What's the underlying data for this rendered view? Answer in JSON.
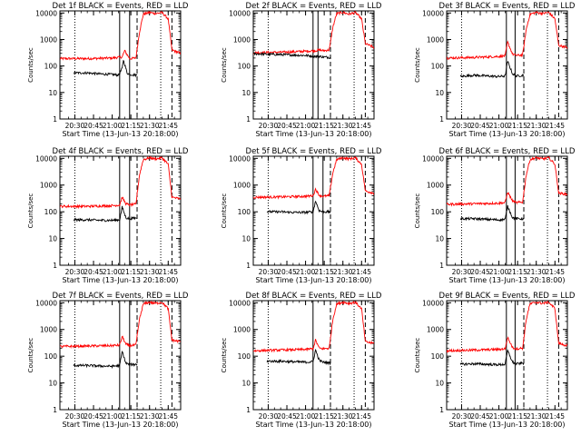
{
  "figure": {
    "background": "#ffffff",
    "colors": {
      "events": "#000000",
      "lld": "#ff0000",
      "axes": "#000000"
    }
  },
  "chart_data": [
    {
      "type": "line",
      "detector": "1f",
      "title": "Det 1f BLACK = Events, RED = LLD",
      "xlabel": "Start Time (13-Jun-13 20:18:00)",
      "ylabel": "Counts/sec",
      "xlim": [
        "20:18",
        "21:55"
      ],
      "ylim": [
        1,
        12000
      ],
      "yscale": "log",
      "xticks": [
        "20:30",
        "20:45",
        "21:00",
        "21:15",
        "21:30",
        "21:45"
      ],
      "yticks": [
        "1",
        "10",
        "100",
        "1000",
        "10000"
      ],
      "vlines": {
        "dotted": [
          "20:30",
          "21:39"
        ],
        "solid": [
          "21:06",
          "21:14"
        ],
        "dashed": [
          "21:20",
          "21:48"
        ]
      },
      "series": [
        {
          "name": "LLD",
          "color": "#ff0000",
          "x": [
            "20:18",
            "20:40",
            "21:00",
            "21:08",
            "21:10",
            "21:14",
            "21:19",
            "21:22",
            "21:25",
            "21:30",
            "21:35",
            "21:40",
            "21:45",
            "21:48",
            "21:55"
          ],
          "y": [
            190,
            190,
            200,
            220,
            380,
            190,
            200,
            2000,
            9000,
            10500,
            9500,
            10500,
            6000,
            400,
            300
          ]
        },
        {
          "name": "Events",
          "color": "#000000",
          "x": [
            "20:29",
            "20:40",
            "20:50",
            "21:00",
            "21:05",
            "21:08",
            "21:09",
            "21:12",
            "21:14",
            "21:20"
          ],
          "y": [
            55,
            55,
            50,
            48,
            45,
            80,
            170,
            55,
            48,
            45
          ]
        }
      ]
    },
    {
      "type": "line",
      "detector": "2f",
      "title": "Det 2f BLACK = Events, RED = LLD",
      "xlabel": "Start Time (13-Jun-13 20:18:00)",
      "ylabel": "Counts/sec",
      "xlim": [
        "20:18",
        "21:55"
      ],
      "ylim": [
        1,
        12000
      ],
      "yscale": "log",
      "xticks": [
        "20:30",
        "20:45",
        "21:00",
        "21:15",
        "21:30",
        "21:45"
      ],
      "yticks": [
        "1",
        "10",
        "100",
        "1000",
        "10000"
      ],
      "vlines": {
        "dotted": [
          "20:30",
          "21:39"
        ],
        "solid": [
          "21:06",
          "21:10"
        ],
        "dashed": [
          "21:20",
          "21:48"
        ]
      },
      "series": [
        {
          "name": "LLD",
          "color": "#ff0000",
          "x": [
            "20:18",
            "20:40",
            "21:00",
            "21:08",
            "21:11",
            "21:14",
            "21:19",
            "21:22",
            "21:25",
            "21:30",
            "21:35",
            "21:40",
            "21:45",
            "21:48",
            "21:55"
          ],
          "y": [
            320,
            330,
            360,
            380,
            400,
            380,
            400,
            3000,
            9500,
            10500,
            9000,
            10500,
            6000,
            700,
            500
          ]
        },
        {
          "name": "Events",
          "color": "#000000",
          "x": [
            "20:18",
            "20:40",
            "21:00",
            "21:08",
            "21:11",
            "21:14",
            "21:20"
          ],
          "y": [
            290,
            270,
            250,
            230,
            230,
            220,
            210
          ]
        }
      ]
    },
    {
      "type": "line",
      "detector": "3f",
      "title": "Det 3f BLACK = Events, RED = LLD",
      "xlabel": "Start Time (13-Jun-13 20:18:00)",
      "ylabel": "Counts/sec",
      "xlim": [
        "20:18",
        "21:55"
      ],
      "ylim": [
        1,
        12000
      ],
      "yscale": "log",
      "xticks": [
        "20:30",
        "20:45",
        "21:00",
        "21:15",
        "21:30",
        "21:45"
      ],
      "yticks": [
        "1",
        "10",
        "100",
        "1000",
        "10000"
      ],
      "vlines": {
        "dotted": [
          "20:30",
          "21:39"
        ],
        "solid": [
          "21:06",
          "21:13"
        ],
        "dashed": [
          "21:20",
          "21:48"
        ]
      },
      "series": [
        {
          "name": "LLD",
          "color": "#ff0000",
          "x": [
            "20:18",
            "20:40",
            "21:00",
            "21:05",
            "21:07",
            "21:11",
            "21:14",
            "21:19",
            "21:22",
            "21:25",
            "21:30",
            "21:35",
            "21:40",
            "21:45",
            "21:48",
            "21:55"
          ],
          "y": [
            200,
            210,
            230,
            240,
            800,
            280,
            250,
            260,
            2500,
            9000,
            10500,
            9500,
            10500,
            6000,
            600,
            500
          ]
        },
        {
          "name": "Events",
          "color": "#000000",
          "x": [
            "20:29",
            "20:40",
            "20:50",
            "21:00",
            "21:05",
            "21:07",
            "21:11",
            "21:14",
            "21:20"
          ],
          "y": [
            40,
            45,
            42,
            40,
            42,
            150,
            50,
            42,
            45
          ]
        }
      ]
    },
    {
      "type": "line",
      "detector": "4f",
      "title": "Det 4f BLACK = Events, RED = LLD",
      "xlabel": "Start Time (13-Jun-13 20:18:00)",
      "ylabel": "Counts/sec",
      "xlim": [
        "20:18",
        "21:55"
      ],
      "ylim": [
        1,
        12000
      ],
      "yscale": "log",
      "xticks": [
        "20:30",
        "20:45",
        "21:00",
        "21:15",
        "21:30",
        "21:45"
      ],
      "yticks": [
        "1",
        "10",
        "100",
        "1000",
        "10000"
      ],
      "vlines": {
        "dotted": [
          "20:30",
          "21:39"
        ],
        "solid": [
          "21:06",
          "21:14"
        ],
        "dashed": [
          "21:20",
          "21:48"
        ]
      },
      "series": [
        {
          "name": "LLD",
          "color": "#ff0000",
          "x": [
            "20:18",
            "20:40",
            "21:00",
            "21:06",
            "21:08",
            "21:11",
            "21:14",
            "21:19",
            "21:22",
            "21:25",
            "21:30",
            "21:35",
            "21:40",
            "21:45",
            "21:48",
            "21:55"
          ],
          "y": [
            160,
            160,
            170,
            180,
            350,
            200,
            180,
            190,
            2500,
            9000,
            10500,
            9500,
            10500,
            6000,
            350,
            300
          ]
        },
        {
          "name": "Events",
          "color": "#000000",
          "x": [
            "20:29",
            "20:40",
            "20:50",
            "21:00",
            "21:06",
            "21:08",
            "21:11",
            "21:14",
            "21:20"
          ],
          "y": [
            50,
            50,
            48,
            48,
            50,
            150,
            60,
            55,
            60
          ]
        }
      ]
    },
    {
      "type": "line",
      "detector": "5f",
      "title": "Det 5f BLACK = Events, RED = LLD",
      "xlabel": "Start Time (13-Jun-13 20:18:00)",
      "ylabel": "Counts/sec",
      "xlim": [
        "20:18",
        "21:55"
      ],
      "ylim": [
        1,
        12000
      ],
      "yscale": "log",
      "xticks": [
        "20:30",
        "20:45",
        "21:00",
        "21:15",
        "21:30",
        "21:45"
      ],
      "yticks": [
        "1",
        "10",
        "100",
        "1000",
        "10000"
      ],
      "vlines": {
        "dotted": [
          "20:30",
          "21:39"
        ],
        "solid": [
          "21:06",
          "21:14"
        ],
        "dashed": [
          "21:20",
          "21:48"
        ]
      },
      "series": [
        {
          "name": "LLD",
          "color": "#ff0000",
          "x": [
            "20:18",
            "20:40",
            "21:00",
            "21:06",
            "21:08",
            "21:11",
            "21:14",
            "21:19",
            "21:22",
            "21:25",
            "21:30",
            "21:35",
            "21:40",
            "21:45",
            "21:48",
            "21:55"
          ],
          "y": [
            350,
            360,
            380,
            400,
            700,
            420,
            380,
            400,
            3000,
            9000,
            10500,
            9500,
            10500,
            6000,
            600,
            500
          ]
        },
        {
          "name": "Events",
          "color": "#000000",
          "x": [
            "20:29",
            "20:40",
            "20:50",
            "21:00",
            "21:06",
            "21:08",
            "21:11",
            "21:14",
            "21:20"
          ],
          "y": [
            100,
            100,
            95,
            95,
            100,
            250,
            110,
            100,
            100
          ]
        }
      ]
    },
    {
      "type": "line",
      "detector": "6f",
      "title": "Det 6f BLACK = Events, RED = LLD",
      "xlabel": "Start Time (13-Jun-13 20:18:00)",
      "ylabel": "Counts/sec",
      "xlim": [
        "20:18",
        "21:55"
      ],
      "ylim": [
        1,
        12000
      ],
      "yscale": "log",
      "xticks": [
        "20:30",
        "20:45",
        "21:00",
        "21:15",
        "21:30",
        "21:45"
      ],
      "yticks": [
        "1",
        "10",
        "100",
        "1000",
        "10000"
      ],
      "vlines": {
        "dotted": [
          "20:30",
          "21:39"
        ],
        "solid": [
          "21:06",
          "21:13"
        ],
        "dashed": [
          "21:20",
          "21:48"
        ]
      },
      "series": [
        {
          "name": "LLD",
          "color": "#ff0000",
          "x": [
            "20:18",
            "20:40",
            "21:00",
            "21:05",
            "21:07",
            "21:11",
            "21:14",
            "21:19",
            "21:22",
            "21:25",
            "21:30",
            "21:35",
            "21:40",
            "21:45",
            "21:48",
            "21:55"
          ],
          "y": [
            190,
            200,
            210,
            220,
            550,
            250,
            220,
            230,
            2500,
            9000,
            10500,
            9500,
            10500,
            6000,
            500,
            450
          ]
        },
        {
          "name": "Events",
          "color": "#000000",
          "x": [
            "20:29",
            "20:40",
            "20:50",
            "21:00",
            "21:05",
            "21:07",
            "21:11",
            "21:14",
            "21:20"
          ],
          "y": [
            55,
            55,
            52,
            50,
            52,
            160,
            60,
            55,
            55
          ]
        }
      ]
    },
    {
      "type": "line",
      "detector": "7f",
      "title": "Det 7f BLACK = Events, RED = LLD",
      "xlabel": "Start Time (13-Jun-13 20:18:00)",
      "ylabel": "Counts/sec",
      "xlim": [
        "20:18",
        "21:55"
      ],
      "ylim": [
        1,
        12000
      ],
      "yscale": "log",
      "xticks": [
        "20:30",
        "20:45",
        "21:00",
        "21:15",
        "21:30",
        "21:45"
      ],
      "yticks": [
        "1",
        "10",
        "100",
        "1000",
        "10000"
      ],
      "vlines": {
        "dotted": [
          "20:30",
          "21:39"
        ],
        "solid": [
          "21:06",
          "21:14"
        ],
        "dashed": [
          "21:20",
          "21:48"
        ]
      },
      "series": [
        {
          "name": "LLD",
          "color": "#ff0000",
          "x": [
            "20:18",
            "20:40",
            "21:00",
            "21:06",
            "21:08",
            "21:11",
            "21:14",
            "21:19",
            "21:22",
            "21:25",
            "21:30",
            "21:35",
            "21:40",
            "21:45",
            "21:48",
            "21:55"
          ],
          "y": [
            230,
            240,
            250,
            260,
            550,
            280,
            250,
            260,
            2500,
            9000,
            10500,
            9500,
            10500,
            6000,
            400,
            350
          ]
        },
        {
          "name": "Events",
          "color": "#000000",
          "x": [
            "20:29",
            "20:40",
            "20:50",
            "21:00",
            "21:06",
            "21:08",
            "21:11",
            "21:14",
            "21:20"
          ],
          "y": [
            45,
            45,
            43,
            42,
            45,
            150,
            55,
            48,
            50
          ]
        }
      ]
    },
    {
      "type": "line",
      "detector": "8f",
      "title": "Det 8f BLACK = Events, RED = LLD",
      "xlabel": "Start Time (13-Jun-13 20:18:00)",
      "ylabel": "Counts/sec",
      "xlim": [
        "20:18",
        "21:55"
      ],
      "ylim": [
        1,
        12000
      ],
      "yscale": "log",
      "xticks": [
        "20:30",
        "20:45",
        "21:00",
        "21:15",
        "21:30",
        "21:45"
      ],
      "yticks": [
        "1",
        "10",
        "100",
        "1000",
        "10000"
      ],
      "vlines": {
        "dotted": [
          "20:30",
          "21:39"
        ],
        "solid": [
          "21:06"
        ],
        "dashed": [
          "21:20",
          "21:48"
        ]
      },
      "series": [
        {
          "name": "LLD",
          "color": "#ff0000",
          "x": [
            "20:18",
            "20:40",
            "21:00",
            "21:06",
            "21:08",
            "21:11",
            "21:14",
            "21:19",
            "21:22",
            "21:25",
            "21:30",
            "21:35",
            "21:40",
            "21:45",
            "21:48",
            "21:55"
          ],
          "y": [
            160,
            170,
            180,
            190,
            400,
            200,
            190,
            200,
            2500,
            9000,
            10500,
            9500,
            10500,
            6000,
            350,
            300
          ]
        },
        {
          "name": "Events",
          "color": "#000000",
          "x": [
            "20:29",
            "20:40",
            "20:50",
            "21:00",
            "21:06",
            "21:08",
            "21:11",
            "21:14",
            "21:20"
          ],
          "y": [
            65,
            65,
            62,
            60,
            62,
            170,
            70,
            60,
            55
          ]
        }
      ]
    },
    {
      "type": "line",
      "detector": "9f",
      "title": "Det 9f BLACK = Events, RED = LLD",
      "xlabel": "Start Time (13-Jun-13 20:18:00)",
      "ylabel": "Counts/sec",
      "xlim": [
        "20:18",
        "21:55"
      ],
      "ylim": [
        1,
        12000
      ],
      "yscale": "log",
      "xticks": [
        "20:30",
        "20:45",
        "21:00",
        "21:15",
        "21:30",
        "21:45"
      ],
      "yticks": [
        "1",
        "10",
        "100",
        "1000",
        "10000"
      ],
      "vlines": {
        "dotted": [
          "20:30",
          "21:39"
        ],
        "solid": [
          "21:06",
          "21:13"
        ],
        "dashed": [
          "21:20",
          "21:48"
        ]
      },
      "series": [
        {
          "name": "LLD",
          "color": "#ff0000",
          "x": [
            "20:18",
            "20:40",
            "21:00",
            "21:05",
            "21:07",
            "21:11",
            "21:14",
            "21:19",
            "21:22",
            "21:25",
            "21:30",
            "21:35",
            "21:40",
            "21:45",
            "21:48",
            "21:55"
          ],
          "y": [
            160,
            170,
            180,
            190,
            500,
            210,
            190,
            200,
            2500,
            9000,
            10500,
            9500,
            10500,
            6000,
            300,
            250
          ]
        },
        {
          "name": "Events",
          "color": "#000000",
          "x": [
            "20:29",
            "20:40",
            "20:50",
            "21:00",
            "21:05",
            "21:07",
            "21:11",
            "21:14",
            "21:20"
          ],
          "y": [
            50,
            52,
            50,
            48,
            50,
            160,
            60,
            52,
            55
          ]
        }
      ]
    }
  ]
}
